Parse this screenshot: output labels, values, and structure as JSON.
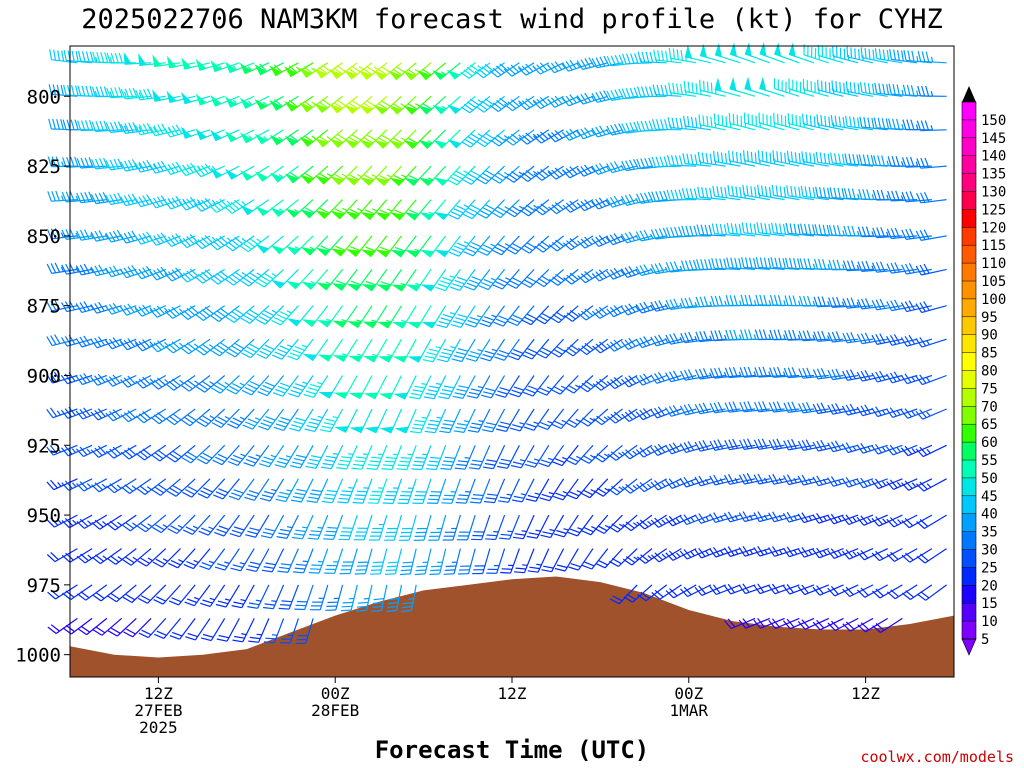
{
  "chart_data": {
    "type": "wind_barb_time_height",
    "title": "2025022706 NAM3KM forecast wind profile (kt) for CYHZ",
    "xlabel": "Forecast Time (UTC)",
    "credit": "coolwx.com/models",
    "y_axis": {
      "unit": "hPa",
      "inverted": true,
      "range": [
        1008,
        782
      ],
      "ticks": [
        "800",
        "825",
        "850",
        "875",
        "900",
        "925",
        "950",
        "975",
        "1000"
      ]
    },
    "x_axis": {
      "range_hours_from_init": [
        0,
        60
      ],
      "ticks": [
        {
          "hour": 6,
          "lines": [
            "12Z",
            "27FEB",
            "2025"
          ]
        },
        {
          "hour": 18,
          "lines": [
            "00Z",
            "28FEB"
          ]
        },
        {
          "hour": 30,
          "lines": [
            "12Z"
          ]
        },
        {
          "hour": 42,
          "lines": [
            "00Z",
            "1MAR"
          ]
        },
        {
          "hour": 54,
          "lines": [
            "12Z"
          ]
        }
      ]
    },
    "surface_pressure": {
      "hours": [
        0,
        3,
        6,
        9,
        12,
        15,
        18,
        21,
        24,
        27,
        30,
        33,
        36,
        39,
        42,
        45,
        48,
        51,
        54,
        57,
        60
      ],
      "hPa": [
        997,
        1000,
        1001,
        1000,
        998,
        992,
        986,
        981,
        977,
        975,
        973,
        972,
        974,
        978,
        984,
        988,
        990,
        991,
        991,
        989,
        986
      ]
    },
    "colorbar": {
      "levels": [
        5,
        10,
        15,
        20,
        25,
        30,
        35,
        40,
        45,
        50,
        55,
        60,
        65,
        70,
        75,
        80,
        85,
        90,
        95,
        100,
        105,
        110,
        115,
        120,
        125,
        130,
        135,
        140,
        145,
        150
      ],
      "labels": [
        "5",
        "10",
        "15",
        "20",
        "25",
        "30",
        "35",
        "40",
        "45",
        "50",
        "55",
        "60",
        "65",
        "70",
        "75",
        "80",
        "85",
        "90",
        "95",
        "100",
        "105",
        "110",
        "115",
        "120",
        "125",
        "130",
        "135",
        "140",
        "145",
        "150"
      ],
      "colors": [
        "#7f00ff",
        "#5500ff",
        "#1e00ff",
        "#0028ff",
        "#0050ff",
        "#0078ff",
        "#00a0ff",
        "#00c8ff",
        "#00e6e6",
        "#00ffb4",
        "#00ff64",
        "#32ff00",
        "#7fff00",
        "#b4ff00",
        "#e6ff00",
        "#ffff00",
        "#ffe600",
        "#ffc800",
        "#ffaa00",
        "#ff9100",
        "#ff7800",
        "#ff5a00",
        "#ff3c00",
        "#ff0000",
        "#ff0050",
        "#ff007f",
        "#ff00a0",
        "#ff00c8",
        "#ff00e6",
        "#ff00ff"
      ]
    },
    "terrain_color": "#a0522d",
    "wind_grid": {
      "hours_start": 0,
      "hours_step": 1,
      "hours_count": 60,
      "levels_hPa": [
        788,
        800,
        812,
        825,
        837,
        850,
        862,
        875,
        887,
        900,
        912,
        925,
        937,
        950,
        962,
        975,
        987,
        1000
      ],
      "note": "Wind direction (deg, from) and speed (kt) fields sampled per hour/level."
    }
  }
}
